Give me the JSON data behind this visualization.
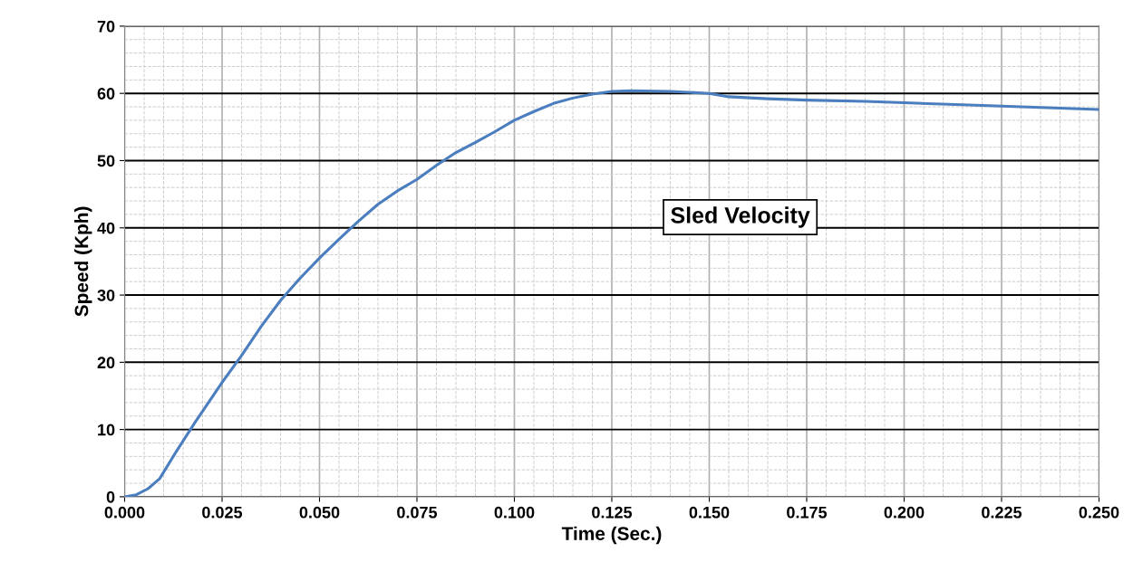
{
  "chart_data": {
    "type": "line",
    "xlabel": "Time (Sec.)",
    "ylabel": "Speed (Kph)",
    "annotations": [
      "Sled Velocity"
    ],
    "x": [
      0,
      0.003,
      0.006,
      0.009,
      0.013,
      0.018,
      0.025,
      0.03,
      0.035,
      0.04,
      0.045,
      0.05,
      0.055,
      0.06,
      0.065,
      0.07,
      0.075,
      0.08,
      0.085,
      0.09,
      0.095,
      0.1,
      0.105,
      0.11,
      0.115,
      0.12,
      0.125,
      0.13,
      0.14,
      0.15,
      0.155,
      0.165,
      0.175,
      0.19,
      0.2,
      0.215,
      0.23,
      0.24,
      0.25
    ],
    "series": [
      {
        "color": "#4a7ebf",
        "values": [
          0,
          0.3,
          1.2,
          2.7,
          6.5,
          11,
          17,
          21,
          25.3,
          29.2,
          32.5,
          35.5,
          38.3,
          41,
          43.5,
          45.5,
          47.2,
          49.3,
          51.2,
          52.7,
          54.3,
          56,
          57.3,
          58.5,
          59.3,
          59.9,
          60.3,
          60.4,
          60.3,
          60,
          59.5,
          59.2,
          59,
          58.8,
          58.6,
          58.3,
          58,
          57.8,
          57.6
        ]
      }
    ],
    "xlim": [
      0,
      0.25
    ],
    "ylim": [
      0,
      70
    ],
    "xticks": [
      {
        "value": 0,
        "label": "0.000"
      },
      {
        "value": 0.025,
        "label": "0.025"
      },
      {
        "value": 0.05,
        "label": "0.050"
      },
      {
        "value": 0.075,
        "label": "0.075"
      },
      {
        "value": 0.1,
        "label": "0.100"
      },
      {
        "value": 0.125,
        "label": "0.125"
      },
      {
        "value": 0.15,
        "label": "0.150"
      },
      {
        "value": 0.175,
        "label": "0.175"
      },
      {
        "value": 0.2,
        "label": "0.200"
      },
      {
        "value": 0.225,
        "label": "0.225"
      },
      {
        "value": 0.25,
        "label": "0.250"
      }
    ],
    "yticks": [
      0,
      10,
      20,
      30,
      40,
      50,
      60,
      70
    ],
    "grid": true,
    "legend": false,
    "marker": "none",
    "line_style": "solid"
  }
}
